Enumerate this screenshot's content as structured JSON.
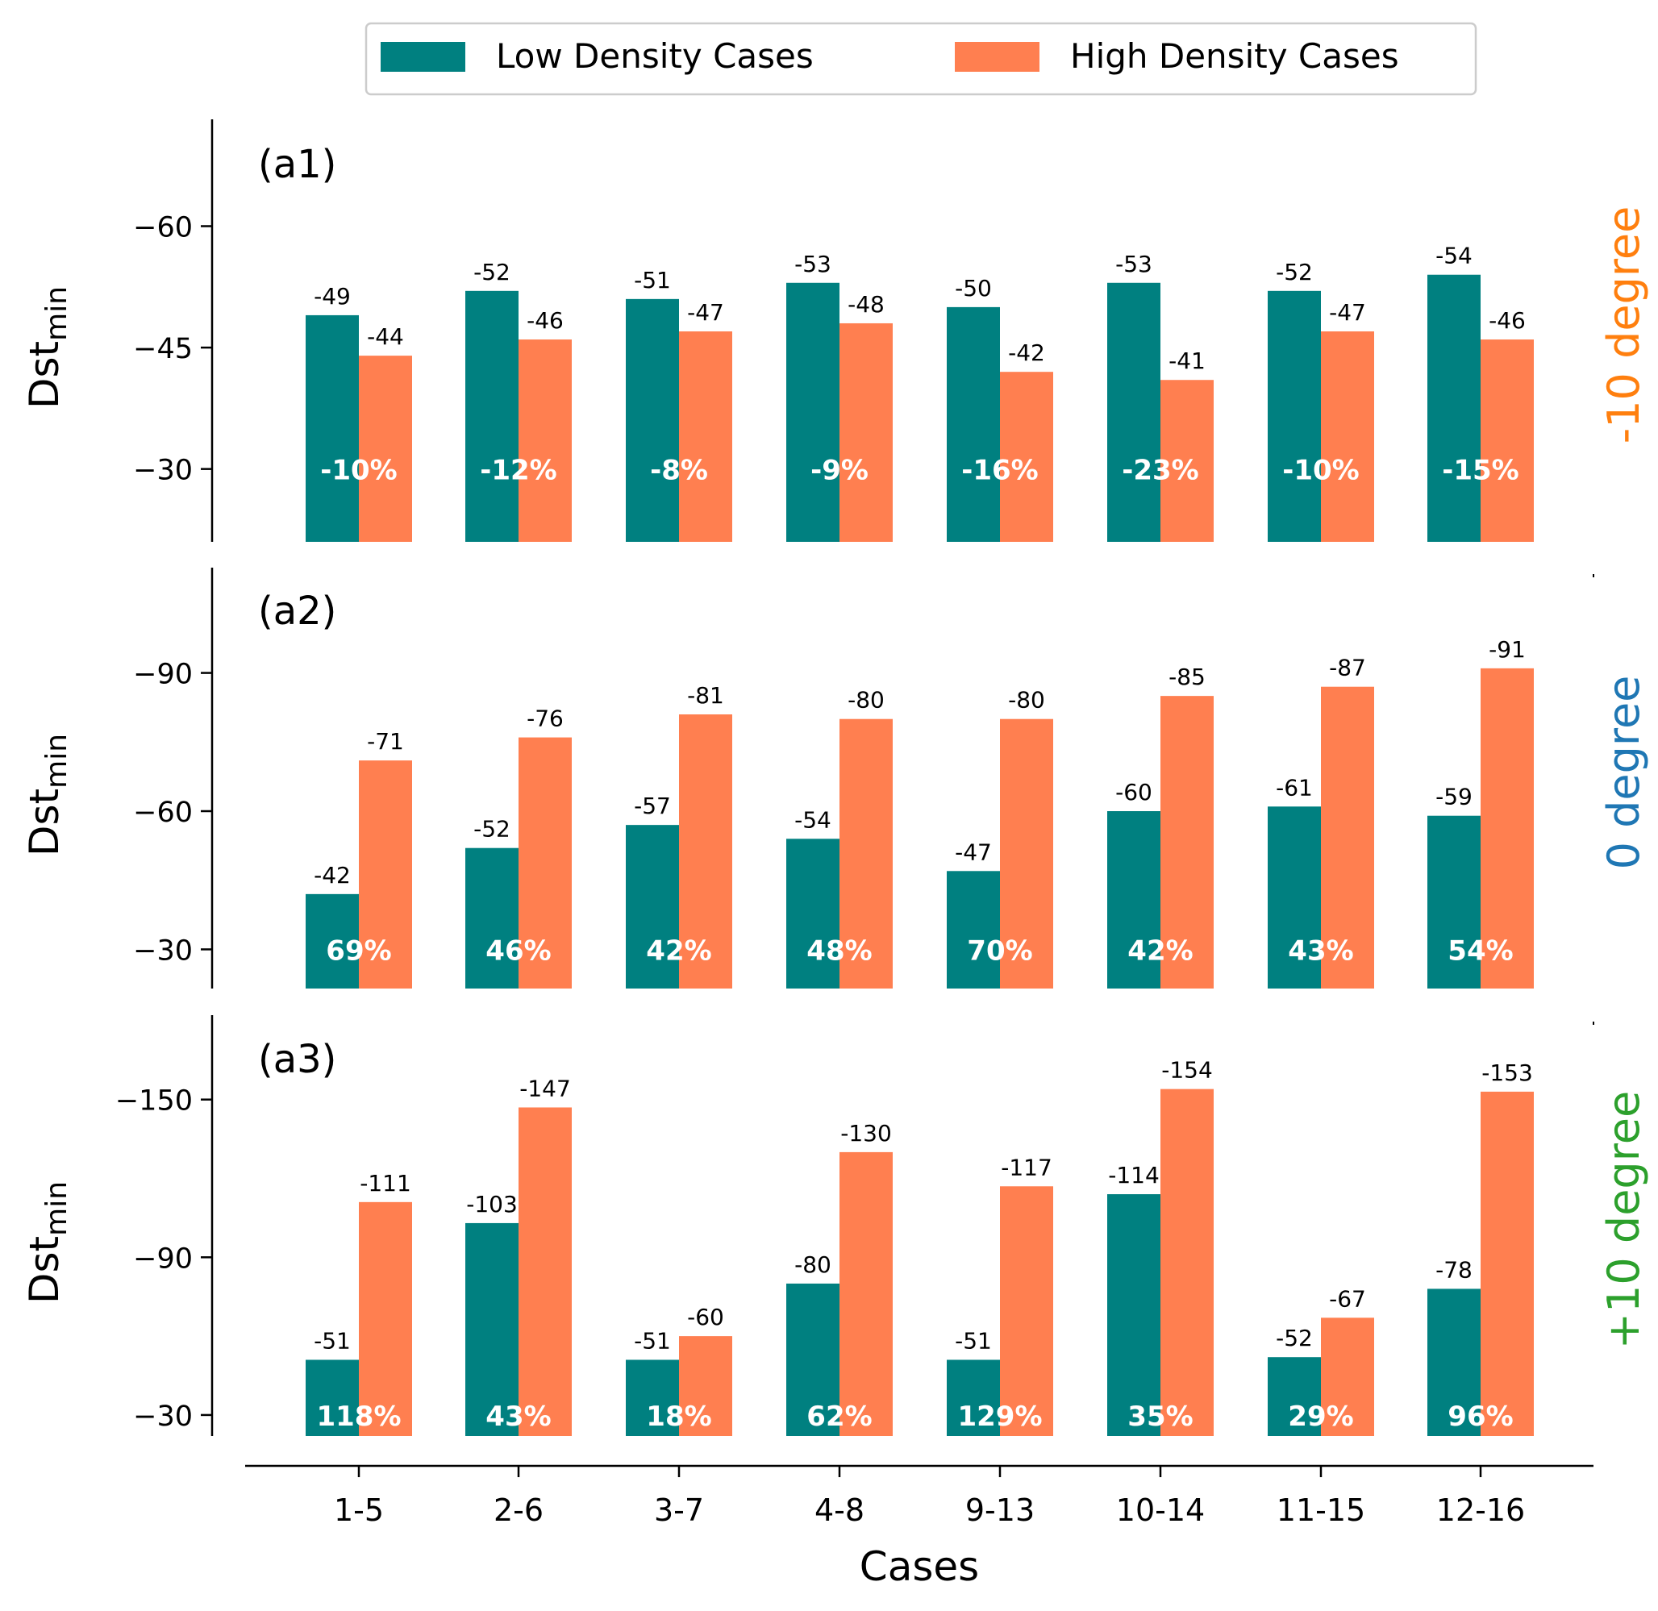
{
  "chart_data": {
    "type": "bar",
    "categories": [
      "1-5",
      "2-6",
      "3-7",
      "4-8",
      "9-13",
      "10-14",
      "11-15",
      "12-16"
    ],
    "xlabel": "Cases",
    "legend": {
      "placement": "top-center",
      "entries": [
        "Low Density Cases",
        "High Density Cases"
      ]
    },
    "colors": {
      "low": "#008080",
      "high": "#ff7f50",
      "pct_text": "#ffffff"
    },
    "panels": [
      {
        "label": "(a1)",
        "ylabel_main": "Dst",
        "ylabel_sub": "min",
        "side_label": "-10 degree",
        "side_label_color": "#ff7f0e",
        "yticks": [
          -60,
          -45,
          -30
        ],
        "ytick_labels": [
          "−60",
          "−45",
          "−30"
        ],
        "ylim": [
          -21,
          -73
        ],
        "series": [
          {
            "name": "Low Density Cases",
            "values": [
              -49,
              -52,
              -51,
              -53,
              -50,
              -53,
              -52,
              -54
            ]
          },
          {
            "name": "High Density Cases",
            "values": [
              -44,
              -46,
              -47,
              -48,
              -42,
              -41,
              -47,
              -46
            ]
          }
        ],
        "percent_labels": [
          "-10%",
          "-12%",
          "-8%",
          "-9%",
          "-16%",
          "-23%",
          "-10%",
          "-15%"
        ]
      },
      {
        "label": "(a2)",
        "ylabel_main": "Dst",
        "ylabel_sub": "min",
        "side_label": "0 degree",
        "side_label_color": "#1f77b4",
        "yticks": [
          -90,
          -60,
          -30
        ],
        "ytick_labels": [
          "−90",
          "−60",
          "−30"
        ],
        "ylim": [
          -21.5,
          -112.5
        ],
        "series": [
          {
            "name": "Low Density Cases",
            "values": [
              -42,
              -52,
              -57,
              -54,
              -47,
              -60,
              -61,
              -59
            ]
          },
          {
            "name": "High Density Cases",
            "values": [
              -71,
              -76,
              -81,
              -80,
              -80,
              -85,
              -87,
              -91
            ]
          }
        ],
        "percent_labels": [
          "69%",
          "46%",
          "42%",
          "48%",
          "70%",
          "42%",
          "43%",
          "54%"
        ]
      },
      {
        "label": "(a3)",
        "ylabel_main": "Dst",
        "ylabel_sub": "min",
        "side_label": "+10 degree",
        "side_label_color": "#2ca02c",
        "yticks": [
          -150,
          -90,
          -30
        ],
        "ytick_labels": [
          "−150",
          "−90",
          "−30"
        ],
        "ylim": [
          -22,
          -181.5
        ],
        "series": [
          {
            "name": "Low Density Cases",
            "values": [
              -51,
              -103,
              -51,
              -80,
              -51,
              -114,
              -52,
              -78
            ]
          },
          {
            "name": "High Density Cases",
            "values": [
              -111,
              -147,
              -60,
              -130,
              -117,
              -154,
              -67,
              -153
            ]
          }
        ],
        "percent_labels": [
          "118%",
          "43%",
          "18%",
          "62%",
          "129%",
          "35%",
          "29%",
          "96%"
        ]
      }
    ]
  }
}
